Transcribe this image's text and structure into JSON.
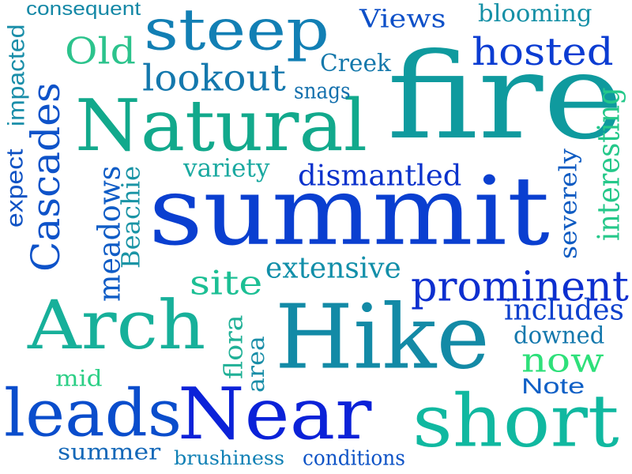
{
  "words": [
    {
      "id": "fire",
      "text": "fire",
      "color": "#0f9a9e"
    },
    {
      "id": "summit",
      "text": "summit",
      "color": "#0a3fd0"
    },
    {
      "id": "hike",
      "text": "Hike",
      "color": "#138aa6"
    },
    {
      "id": "natural",
      "text": "Natural",
      "color": "#12a98c"
    },
    {
      "id": "near",
      "text": "Near",
      "color": "#0b22d8"
    },
    {
      "id": "short",
      "text": "short",
      "color": "#10b8a0"
    },
    {
      "id": "arch",
      "text": "Arch",
      "color": "#17b09a"
    },
    {
      "id": "leads",
      "text": "leads",
      "color": "#0a4dcc"
    },
    {
      "id": "steep",
      "text": "steep",
      "color": "#127fb4"
    },
    {
      "id": "prominent",
      "text": "prominent",
      "color": "#0d2fcf"
    },
    {
      "id": "hosted",
      "text": "hosted",
      "color": "#0b3cd2"
    },
    {
      "id": "lookout",
      "text": "lookout",
      "color": "#1478ad"
    },
    {
      "id": "cascades",
      "text": "Cascades",
      "color": "#0e53c9"
    },
    {
      "id": "old",
      "text": "Old",
      "color": "#2cc38c"
    },
    {
      "id": "dismantled",
      "text": "dismantled",
      "color": "#0b32cc"
    },
    {
      "id": "extensive",
      "text": "extensive",
      "color": "#128fa9"
    },
    {
      "id": "site",
      "text": "site",
      "color": "#1cbf94"
    },
    {
      "id": "includes",
      "text": "includes",
      "color": "#0d40cd"
    },
    {
      "id": "now",
      "text": "now",
      "color": "#2ee07a"
    },
    {
      "id": "views",
      "text": "Views",
      "color": "#0e50c8"
    },
    {
      "id": "creek",
      "text": "Creek",
      "color": "#1478ab"
    },
    {
      "id": "blooming",
      "text": "blooming",
      "color": "#1590a6"
    },
    {
      "id": "consequent",
      "text": "consequent",
      "color": "#1488a6"
    },
    {
      "id": "impacted",
      "text": "impacted",
      "color": "#1a8ea9"
    },
    {
      "id": "expect",
      "text": "expect",
      "color": "#1053c4"
    },
    {
      "id": "meadows",
      "text": "meadows",
      "color": "#0f5cc6"
    },
    {
      "id": "beachie",
      "text": "Beachie",
      "color": "#1a94a5"
    },
    {
      "id": "variety",
      "text": "variety",
      "color": "#1aa9a0"
    },
    {
      "id": "snags",
      "text": "snags",
      "color": "#1470ad"
    },
    {
      "id": "interesting",
      "text": "interesting",
      "color": "#25c88a"
    },
    {
      "id": "severely",
      "text": "severely",
      "color": "#0e5bc2"
    },
    {
      "id": "flora",
      "text": "flora",
      "color": "#1fb096"
    },
    {
      "id": "area",
      "text": "area",
      "color": "#1a8ea8"
    },
    {
      "id": "downed",
      "text": "downed",
      "color": "#1478ad"
    },
    {
      "id": "mid",
      "text": "mid",
      "color": "#2ccf86"
    },
    {
      "id": "note",
      "text": "Note",
      "color": "#1060c6"
    },
    {
      "id": "summer",
      "text": "summer",
      "color": "#1468b8"
    },
    {
      "id": "brushiness",
      "text": "brushiness",
      "color": "#1080b5"
    },
    {
      "id": "conditions",
      "text": "conditions",
      "color": "#0e53c6"
    }
  ]
}
